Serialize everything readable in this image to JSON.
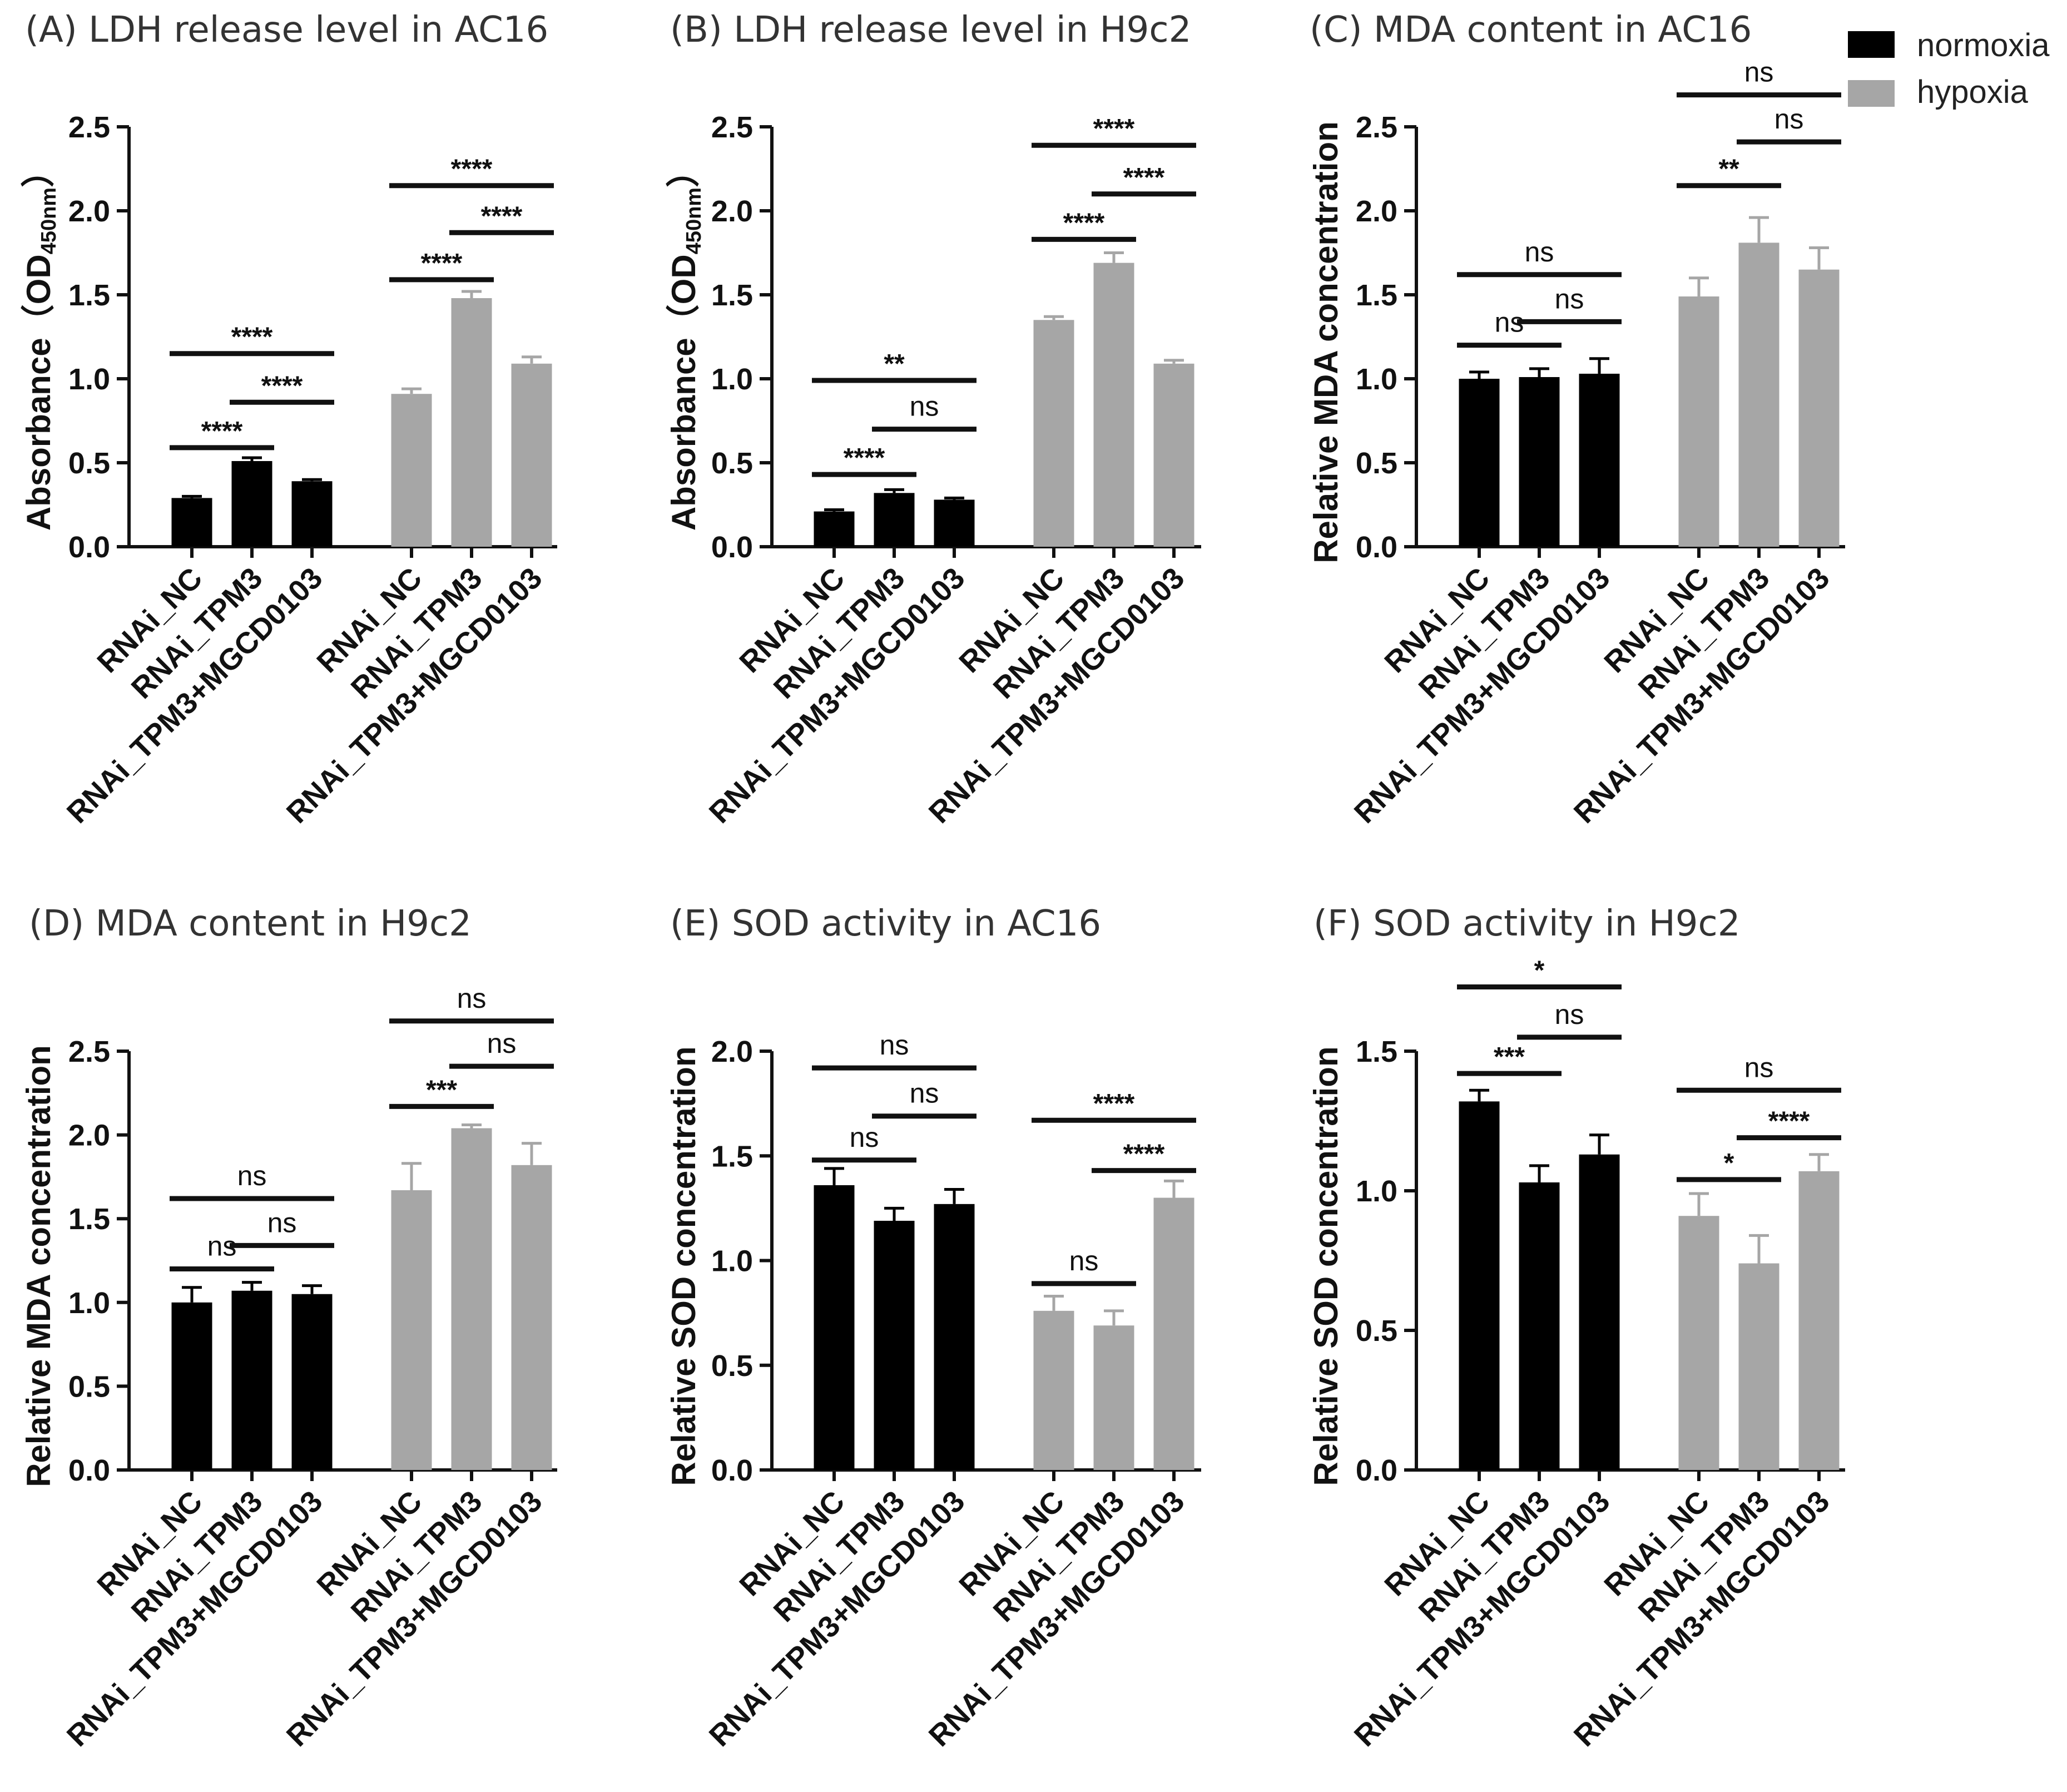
{
  "colors": {
    "normoxia": "#000000",
    "hypoxia": "#a6a6a6"
  },
  "legend": [
    {
      "label": "normoxia",
      "color_key": "normoxia"
    },
    {
      "label": "hypoxia",
      "color_key": "hypoxia"
    }
  ],
  "chart_data": [
    {
      "id": "A",
      "type": "bar",
      "title": "(A) LDH release level in AC16",
      "ylabel": "Absorbance（OD",
      "ylabel_subscript": "450nm",
      "ylabel_close": "）",
      "ylim": [
        0,
        2.5
      ],
      "ticks": [
        0.0,
        0.5,
        1.0,
        1.5,
        2.0,
        2.5
      ],
      "tick_labels": [
        "0.0",
        "0.5",
        "1.0",
        "1.5",
        "2.0",
        "2.5"
      ],
      "categories": [
        "RNAi_NC",
        "RNAi_TPM3",
        "RNAi_TPM3+MGCD0103"
      ],
      "series": [
        {
          "name": "normoxia",
          "values": [
            0.29,
            0.51,
            0.39
          ],
          "errors": [
            0.01,
            0.02,
            0.01
          ]
        },
        {
          "name": "hypoxia",
          "values": [
            0.91,
            1.48,
            1.09
          ],
          "errors": [
            0.03,
            0.04,
            0.04
          ]
        }
      ],
      "significance": [
        {
          "group": 0,
          "from": 0,
          "to": 1,
          "label": "****",
          "y": 0.59
        },
        {
          "group": 0,
          "from": 1,
          "to": 2,
          "label": "****",
          "y": 0.86
        },
        {
          "group": 0,
          "from": 0,
          "to": 2,
          "label": "****",
          "y": 1.15
        },
        {
          "group": 1,
          "from": 0,
          "to": 1,
          "label": "****",
          "y": 1.59
        },
        {
          "group": 1,
          "from": 1,
          "to": 2,
          "label": "****",
          "y": 1.87
        },
        {
          "group": 1,
          "from": 0,
          "to": 2,
          "label": "****",
          "y": 2.15
        }
      ]
    },
    {
      "id": "B",
      "type": "bar",
      "title": "(B) LDH release level in H9c2",
      "ylabel": "Absorbance（OD",
      "ylabel_subscript": "450nm",
      "ylabel_close": "）",
      "ylim": [
        0,
        2.5
      ],
      "ticks": [
        0.0,
        0.5,
        1.0,
        1.5,
        2.0,
        2.5
      ],
      "tick_labels": [
        "0.0",
        "0.5",
        "1.0",
        "1.5",
        "2.0",
        "2.5"
      ],
      "categories": [
        "RNAi_NC",
        "RNAi_TPM3",
        "RNAi_TPM3+MGCD0103"
      ],
      "series": [
        {
          "name": "normoxia",
          "values": [
            0.21,
            0.32,
            0.28
          ],
          "errors": [
            0.01,
            0.02,
            0.01
          ]
        },
        {
          "name": "hypoxia",
          "values": [
            1.35,
            1.69,
            1.09
          ],
          "errors": [
            0.02,
            0.06,
            0.02
          ]
        }
      ],
      "significance": [
        {
          "group": 0,
          "from": 0,
          "to": 1,
          "label": "****",
          "y": 0.43
        },
        {
          "group": 0,
          "from": 1,
          "to": 2,
          "label": "ns",
          "y": 0.7
        },
        {
          "group": 0,
          "from": 0,
          "to": 2,
          "label": "**",
          "y": 0.99
        },
        {
          "group": 1,
          "from": 0,
          "to": 1,
          "label": "****",
          "y": 1.83
        },
        {
          "group": 1,
          "from": 1,
          "to": 2,
          "label": "****",
          "y": 2.1
        },
        {
          "group": 1,
          "from": 0,
          "to": 2,
          "label": "****",
          "y": 2.39
        }
      ]
    },
    {
      "id": "C",
      "type": "bar",
      "title": "(C) MDA content in AC16",
      "ylabel": "Relative MDA concentration",
      "ylim": [
        0,
        2.5
      ],
      "ticks": [
        0.0,
        0.5,
        1.0,
        1.5,
        2.0,
        2.5
      ],
      "tick_labels": [
        "0.0",
        "0.5",
        "1.0",
        "1.5",
        "2.0",
        "2.5"
      ],
      "categories": [
        "RNAi_NC",
        "RNAi_TPM3",
        "RNAi_TPM3+MGCD0103"
      ],
      "series": [
        {
          "name": "normoxia",
          "values": [
            1.0,
            1.01,
            1.03
          ],
          "errors": [
            0.04,
            0.05,
            0.09
          ]
        },
        {
          "name": "hypoxia",
          "values": [
            1.49,
            1.81,
            1.65
          ],
          "errors": [
            0.11,
            0.15,
            0.13
          ]
        }
      ],
      "significance": [
        {
          "group": 0,
          "from": 0,
          "to": 1,
          "label": "ns",
          "y": 1.2
        },
        {
          "group": 0,
          "from": 1,
          "to": 2,
          "label": "ns",
          "y": 1.34
        },
        {
          "group": 0,
          "from": 0,
          "to": 2,
          "label": "ns",
          "y": 1.62
        },
        {
          "group": 1,
          "from": 0,
          "to": 1,
          "label": "**",
          "y": 2.15
        },
        {
          "group": 1,
          "from": 1,
          "to": 2,
          "label": "ns",
          "y": 2.41
        },
        {
          "group": 1,
          "from": 0,
          "to": 2,
          "label": "ns",
          "y": 2.69
        }
      ]
    },
    {
      "id": "D",
      "type": "bar",
      "title": "(D) MDA content in H9c2",
      "ylabel": "Relative MDA concentration",
      "ylim": [
        0,
        2.5
      ],
      "ticks": [
        0.0,
        0.5,
        1.0,
        1.5,
        2.0,
        2.5
      ],
      "tick_labels": [
        "0.0",
        "0.5",
        "1.0",
        "1.5",
        "2.0",
        "2.5"
      ],
      "categories": [
        "RNAi_NC",
        "RNAi_TPM3",
        "RNAi_TPM3+MGCD0103"
      ],
      "series": [
        {
          "name": "normoxia",
          "values": [
            1.0,
            1.07,
            1.05
          ],
          "errors": [
            0.09,
            0.05,
            0.05
          ]
        },
        {
          "name": "hypoxia",
          "values": [
            1.67,
            2.04,
            1.82
          ],
          "errors": [
            0.16,
            0.02,
            0.13
          ]
        }
      ],
      "significance": [
        {
          "group": 0,
          "from": 0,
          "to": 1,
          "label": "ns",
          "y": 1.2
        },
        {
          "group": 0,
          "from": 1,
          "to": 2,
          "label": "ns",
          "y": 1.34
        },
        {
          "group": 0,
          "from": 0,
          "to": 2,
          "label": "ns",
          "y": 1.62
        },
        {
          "group": 1,
          "from": 0,
          "to": 1,
          "label": "***",
          "y": 2.17
        },
        {
          "group": 1,
          "from": 1,
          "to": 2,
          "label": "ns",
          "y": 2.41
        },
        {
          "group": 1,
          "from": 0,
          "to": 2,
          "label": "ns",
          "y": 2.68
        }
      ]
    },
    {
      "id": "E",
      "type": "bar",
      "title": "(E) SOD activity in AC16",
      "ylabel": "Relative SOD concentration",
      "ylim": [
        0,
        2.0
      ],
      "ticks": [
        0.0,
        0.5,
        1.0,
        1.5,
        2.0
      ],
      "tick_labels": [
        "0.0",
        "0.5",
        "1.0",
        "1.5",
        "2.0"
      ],
      "categories": [
        "RNAi_NC",
        "RNAi_TPM3",
        "RNAi_TPM3+MGCD0103"
      ],
      "series": [
        {
          "name": "normoxia",
          "values": [
            1.36,
            1.19,
            1.27
          ],
          "errors": [
            0.08,
            0.06,
            0.07
          ]
        },
        {
          "name": "hypoxia",
          "values": [
            0.76,
            0.69,
            1.3
          ],
          "errors": [
            0.07,
            0.07,
            0.08
          ]
        }
      ],
      "significance": [
        {
          "group": 0,
          "from": 0,
          "to": 1,
          "label": "ns",
          "y": 1.48
        },
        {
          "group": 0,
          "from": 1,
          "to": 2,
          "label": "ns",
          "y": 1.69
        },
        {
          "group": 0,
          "from": 0,
          "to": 2,
          "label": "ns",
          "y": 1.92
        },
        {
          "group": 1,
          "from": 0,
          "to": 1,
          "label": "ns",
          "y": 0.89
        },
        {
          "group": 1,
          "from": 1,
          "to": 2,
          "label": "****",
          "y": 1.43
        },
        {
          "group": 1,
          "from": 0,
          "to": 2,
          "label": "****",
          "y": 1.67
        }
      ]
    },
    {
      "id": "F",
      "type": "bar",
      "title": "(F) SOD activity in H9c2",
      "ylabel": "Relative SOD concentration",
      "ylim": [
        0,
        1.5
      ],
      "ticks": [
        0.0,
        0.5,
        1.0,
        1.5
      ],
      "tick_labels": [
        "0.0",
        "0.5",
        "1.0",
        "1.5"
      ],
      "categories": [
        "RNAi_NC",
        "RNAi_TPM3",
        "RNAi_TPM3+MGCD0103"
      ],
      "series": [
        {
          "name": "normoxia",
          "values": [
            1.32,
            1.03,
            1.13
          ],
          "errors": [
            0.04,
            0.06,
            0.07
          ]
        },
        {
          "name": "hypoxia",
          "values": [
            0.91,
            0.74,
            1.07
          ],
          "errors": [
            0.08,
            0.1,
            0.06
          ]
        }
      ],
      "significance": [
        {
          "group": 0,
          "from": 0,
          "to": 1,
          "label": "***",
          "y": 1.42
        },
        {
          "group": 0,
          "from": 1,
          "to": 2,
          "label": "ns",
          "y": 1.55
        },
        {
          "group": 0,
          "from": 0,
          "to": 2,
          "label": "*",
          "y": 1.73
        },
        {
          "group": 1,
          "from": 0,
          "to": 1,
          "label": "*",
          "y": 1.04
        },
        {
          "group": 1,
          "from": 1,
          "to": 2,
          "label": "****",
          "y": 1.19
        },
        {
          "group": 1,
          "from": 0,
          "to": 2,
          "label": "ns",
          "y": 1.36
        }
      ]
    }
  ]
}
